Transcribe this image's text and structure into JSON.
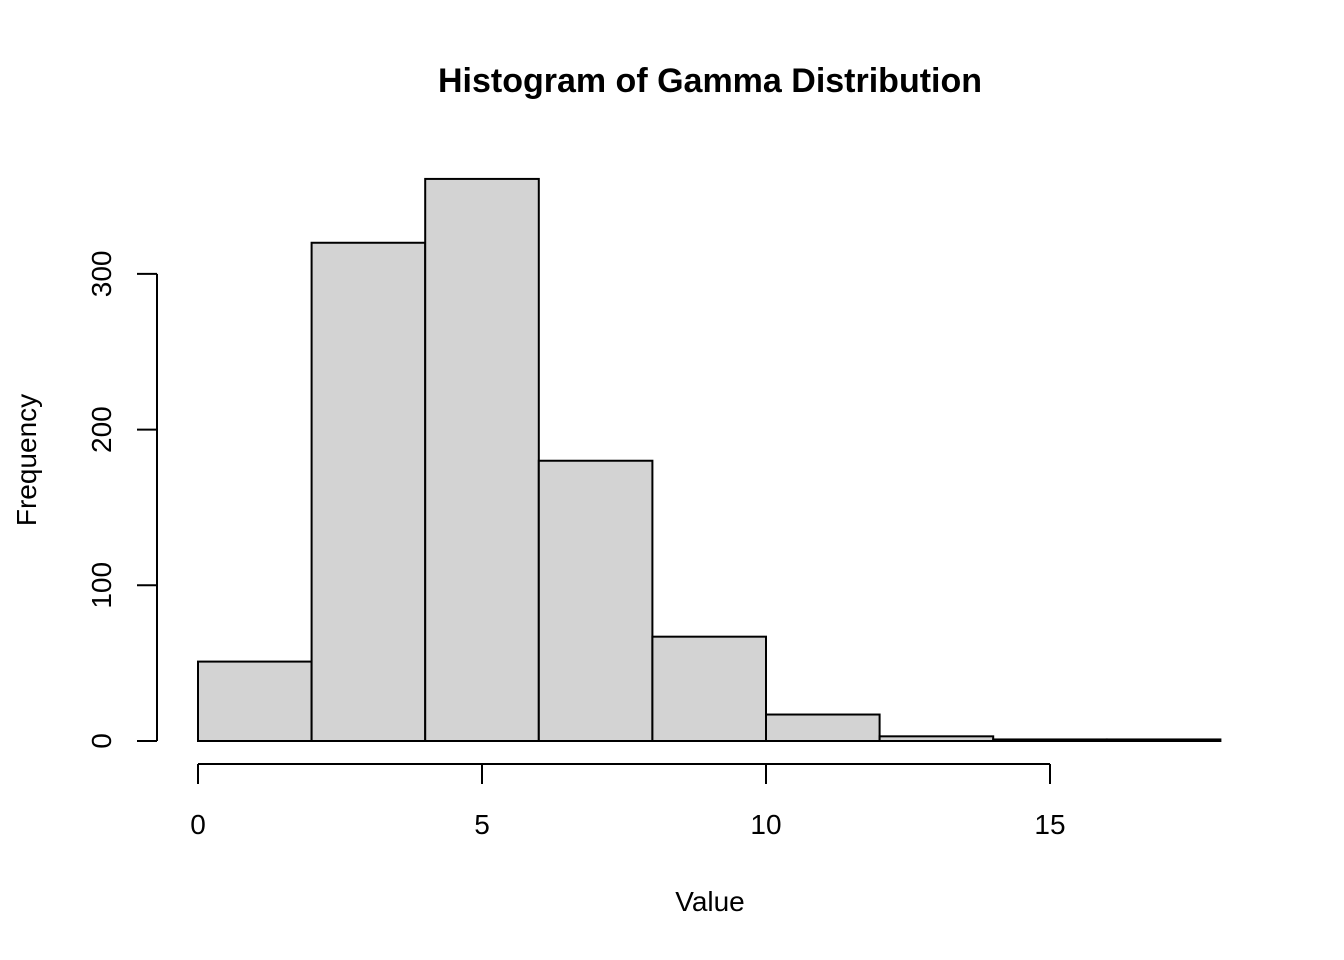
{
  "chart_data": {
    "type": "bar",
    "subtype": "histogram",
    "title": "Histogram of Gamma Distribution",
    "xlabel": "Value",
    "ylabel": "Frequency",
    "bins": [
      {
        "start": 0,
        "end": 2,
        "count": 51
      },
      {
        "start": 2,
        "end": 4,
        "count": 320
      },
      {
        "start": 4,
        "end": 6,
        "count": 361
      },
      {
        "start": 6,
        "end": 8,
        "count": 180
      },
      {
        "start": 8,
        "end": 10,
        "count": 67
      },
      {
        "start": 10,
        "end": 12,
        "count": 17
      },
      {
        "start": 12,
        "end": 14,
        "count": 3
      },
      {
        "start": 14,
        "end": 16,
        "count": 1
      },
      {
        "start": 16,
        "end": 18,
        "count": 1
      }
    ],
    "xlim": [
      0,
      18
    ],
    "ylim": [
      0,
      361
    ],
    "x_ticks": [
      0,
      5,
      10,
      15
    ],
    "y_ticks": [
      0,
      100,
      200,
      300
    ],
    "bar_fill": "#d3d3d3",
    "bar_stroke": "#000000",
    "grid": false,
    "legend": "none"
  }
}
